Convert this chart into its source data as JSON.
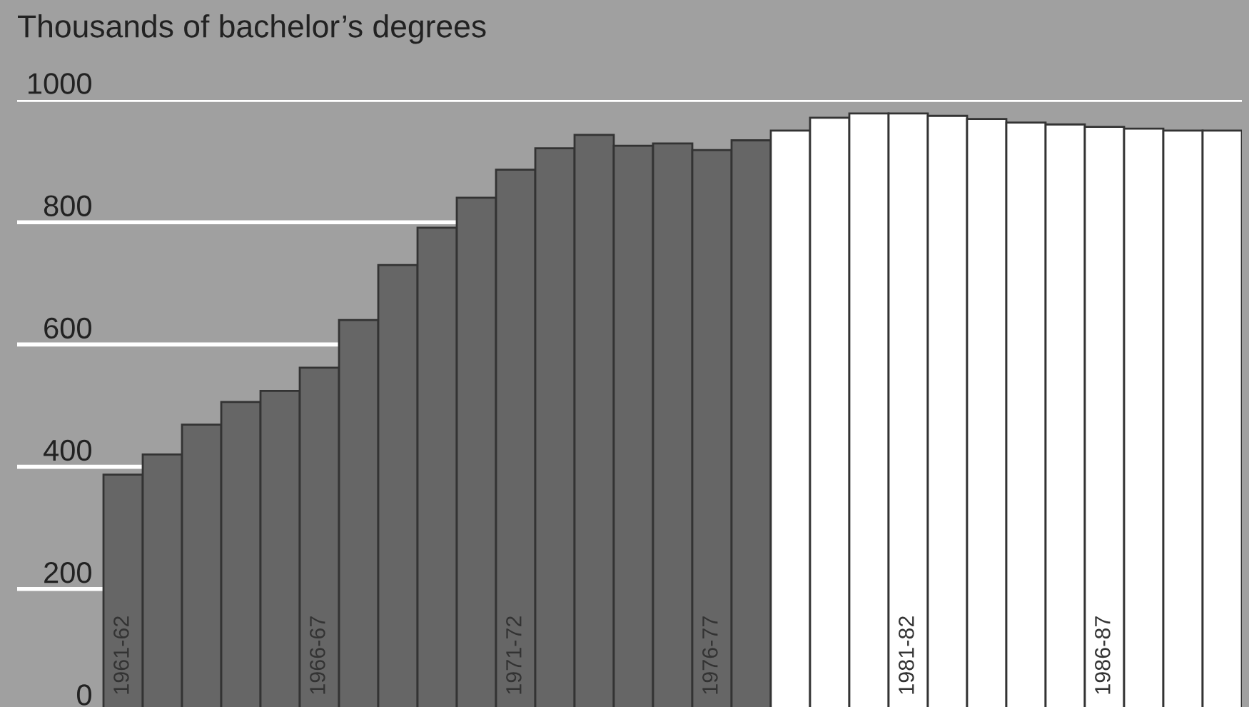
{
  "chart_data": {
    "type": "bar",
    "ylabel": "Thousands of bachelor’s degrees",
    "categories": [
      "1961-62",
      null,
      null,
      null,
      null,
      "1966-67",
      null,
      null,
      null,
      null,
      "1971-72",
      null,
      null,
      null,
      null,
      "1976-77",
      null,
      null,
      null,
      null,
      "1981-82",
      null,
      null,
      null,
      null,
      "1986-87",
      null,
      null,
      null
    ],
    "values": [
      387,
      420,
      469,
      506,
      524,
      562,
      640,
      730,
      791,
      840,
      886,
      921,
      943,
      925,
      929,
      918,
      934,
      950,
      971,
      978,
      978,
      974,
      969,
      963,
      960,
      956,
      953,
      950,
      950
    ],
    "colors": [
      "#666666",
      "#666666",
      "#666666",
      "#666666",
      "#666666",
      "#666666",
      "#666666",
      "#666666",
      "#666666",
      "#666666",
      "#666666",
      "#666666",
      "#666666",
      "#666666",
      "#666666",
      "#666666",
      "#666666",
      "#ffffff",
      "#ffffff",
      "#ffffff",
      "#ffffff",
      "#ffffff",
      "#ffffff",
      "#ffffff",
      "#ffffff",
      "#ffffff",
      "#ffffff",
      "#ffffff",
      "#ffffff"
    ],
    "ylim": [
      0,
      1000
    ],
    "yticks": [
      0,
      200,
      400,
      600,
      800,
      1000
    ],
    "grid": "y"
  }
}
